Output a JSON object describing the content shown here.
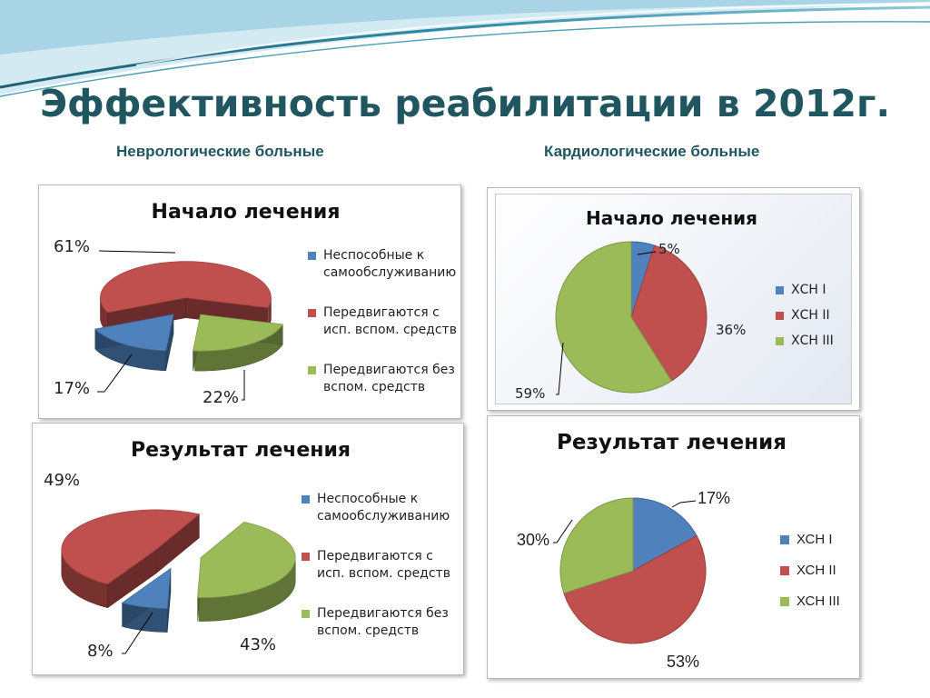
{
  "slide": {
    "title": "Эффективность реабилитации в 2012г.",
    "left_heading": "Неврологические больные",
    "right_heading": "Кардиологические больные"
  },
  "chart_data": [
    {
      "type": "pie",
      "title": "Начало лечения",
      "three_d": true,
      "categories": [
        "Неспособные к самообслуживанию",
        "Передвигаются с исп. вспом. средств",
        "Передвигаются без вспом. средств"
      ],
      "values": [
        17,
        61,
        22
      ],
      "labels": [
        "17%",
        "61%",
        "22%"
      ],
      "colors": [
        "#4f81bd",
        "#c0504d",
        "#9bbb59"
      ],
      "legend": "right"
    },
    {
      "type": "pie",
      "title": "Результат лечения",
      "three_d": true,
      "categories": [
        "Неспособные к самообслуживанию",
        "Передвигаются с исп. вспом. средств",
        "Передвигаются без вспом. средств"
      ],
      "values": [
        8,
        49,
        43
      ],
      "labels": [
        "8%",
        "49%",
        "43%"
      ],
      "colors": [
        "#4f81bd",
        "#c0504d",
        "#9bbb59"
      ],
      "legend": "right"
    },
    {
      "type": "pie",
      "title": "Начало лечения",
      "categories": [
        "ХСН I",
        "ХСН II",
        "ХСН III"
      ],
      "values": [
        5,
        36,
        59
      ],
      "labels": [
        "5%",
        "36%",
        "59%"
      ],
      "colors": [
        "#4f81bd",
        "#c0504d",
        "#9bbb59"
      ],
      "legend": "right"
    },
    {
      "type": "pie",
      "title": "Результат лечения",
      "categories": [
        "ХСН I",
        "ХСН II",
        "ХСН III"
      ],
      "values": [
        17,
        53,
        30
      ],
      "labels": [
        "17%",
        "53%",
        "30%"
      ],
      "colors": [
        "#4f81bd",
        "#c0504d",
        "#9bbb59"
      ],
      "legend": "right"
    }
  ]
}
